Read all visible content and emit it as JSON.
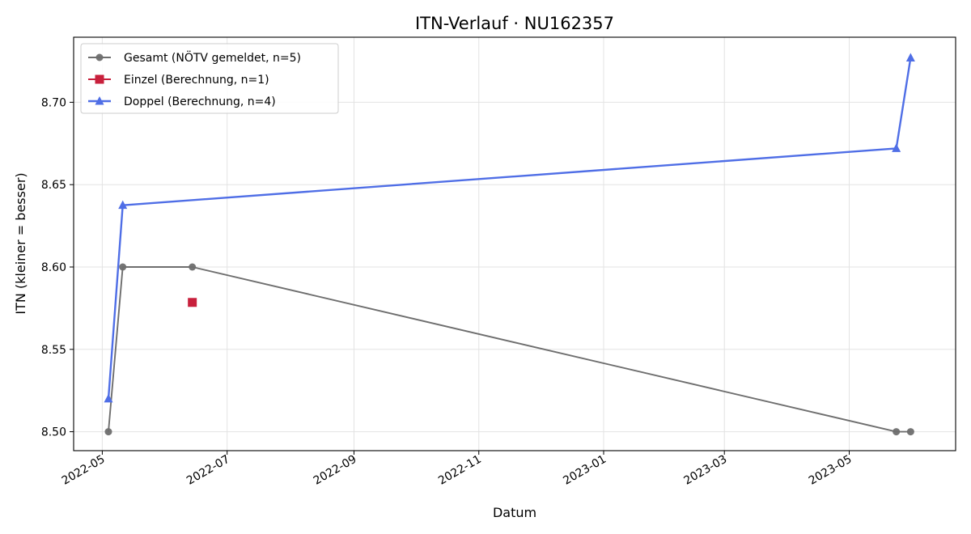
{
  "chart_data": {
    "type": "line",
    "title": "ITN-Verlauf · NU162357",
    "xlabel": "Datum",
    "ylabel": "ITN  (kleiner = besser)",
    "x_type": "date",
    "xlim": [
      "2022-04-17",
      "2023-06-22"
    ],
    "ylim": [
      8.4885,
      8.7395
    ],
    "x_ticks": [
      "2022-05-01",
      "2022-07-01",
      "2022-09-01",
      "2022-11-01",
      "2023-01-01",
      "2023-03-01",
      "2023-05-01"
    ],
    "x_tick_labels": [
      "2022-05",
      "2022-07",
      "2022-09",
      "2022-11",
      "2023-01",
      "2023-03",
      "2023-05"
    ],
    "y_ticks": [
      8.5,
      8.55,
      8.6,
      8.65,
      8.7
    ],
    "y_tick_labels": [
      "8.50",
      "8.55",
      "8.60",
      "8.65",
      "8.70"
    ],
    "grid": true,
    "legend_position": "top-left",
    "series": [
      {
        "name": "Gesamt (NÖTV gemeldet, n=5)",
        "marker": "circle",
        "color": "#6e6e6e",
        "points": [
          {
            "x": "2022-05-04",
            "y": 8.5
          },
          {
            "x": "2022-05-11",
            "y": 8.6
          },
          {
            "x": "2022-06-14",
            "y": 8.6
          },
          {
            "x": "2023-05-24",
            "y": 8.5
          },
          {
            "x": "2023-05-31",
            "y": 8.5
          }
        ]
      },
      {
        "name": "Einzel (Berechnung, n=1)",
        "marker": "square",
        "color": "#c8203c",
        "points": [
          {
            "x": "2022-06-14",
            "y": 8.5785
          }
        ]
      },
      {
        "name": "Doppel (Berechnung, n=4)",
        "marker": "triangle",
        "color": "#4f6ee6",
        "points": [
          {
            "x": "2022-05-04",
            "y": 8.52
          },
          {
            "x": "2022-05-11",
            "y": 8.6375
          },
          {
            "x": "2023-05-24",
            "y": 8.672
          },
          {
            "x": "2023-05-31",
            "y": 8.727
          }
        ]
      }
    ]
  }
}
